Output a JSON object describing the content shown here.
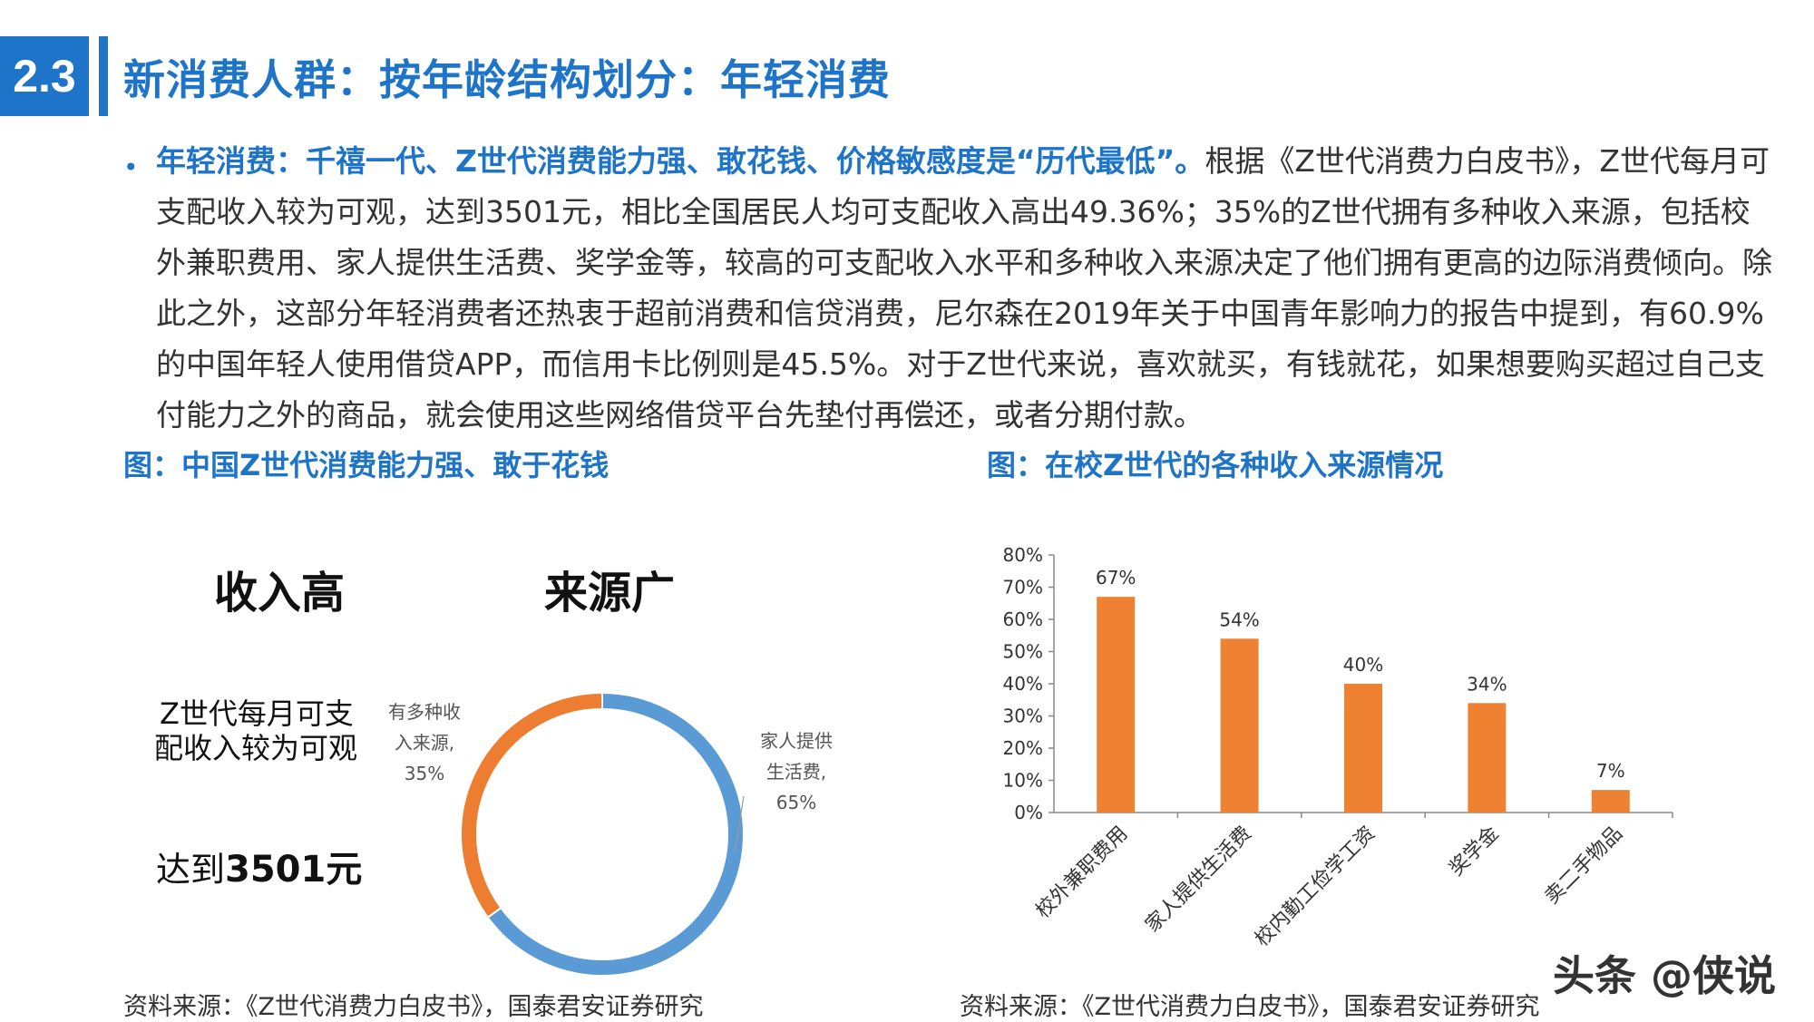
{
  "header": {
    "section_number": "2.3",
    "title": "新消费人群：按年龄结构划分：年轻消费"
  },
  "intro": {
    "lead": "年轻消费：千禧一代、Z世代消费能力强、敢花钱、价格敏感度是“历代最低”。",
    "body": "根据《Z世代消费力白皮书》，Z世代每月可支配收入较为可观，达到3501元，相比全国居民人均可支配收入高出49.36%；35%的Z世代拥有多种收入来源，包括校外兼职费用、家人提供生活费、奖学金等，较高的可支配收入水平和多种收入来源决定了他们拥有更高的边际消费倾向。除此之外，这部分年轻消费者还热衷于超前消费和信贷消费，尼尔森在2019年关于中国青年影响力的报告中提到，有60.9%的中国年轻人使用借贷APP，而信用卡比例则是45.5%。对于Z世代来说，喜欢就买，有钱就花，如果想要购买超过自己支付能力之外的商品，就会使用这些网络借贷平台先垫付再偿还，或者分期付款。"
  },
  "left_figure": {
    "caption": "图：中国Z世代消费能力强、敢于花钱",
    "heading_income": "收入高",
    "heading_sources": "来源广",
    "income_line1": "Z世代每月可支",
    "income_line2": "配收入较为可观",
    "income_reach_prefix": "达到",
    "income_reach_value": "3501元",
    "source": "资料来源：《Z世代消费力白皮书》，国泰君安证券研究"
  },
  "right_figure": {
    "caption": "图：在校Z世代的各种收入来源情况",
    "source": "资料来源：《Z世代消费力白皮书》，国泰君安证券研究"
  },
  "colors": {
    "accent_blue": "#1e74c9",
    "bar_orange": "#ee8232",
    "donut_blue": "#5b9bd5",
    "donut_orange": "#ed7d31"
  },
  "watermark": "头条 @侠说",
  "chart_data": [
    {
      "type": "pie",
      "variant": "donut",
      "title": "",
      "slices": [
        {
          "label_line1": "家人提供",
          "label_line2": "生活费,",
          "value": 65,
          "value_label": "65%",
          "color": "#5b9bd5"
        },
        {
          "label_line1": "有多种收",
          "label_line2": "入来源,",
          "value": 35,
          "value_label": "35%",
          "color": "#ed7d31"
        }
      ]
    },
    {
      "type": "bar",
      "title": "",
      "xlabel": "",
      "ylabel": "",
      "categories": [
        "校外兼职费用",
        "家人提供生活费",
        "校内勤工俭学工资",
        "奖学金",
        "卖二手物品"
      ],
      "values": [
        67,
        54,
        40,
        34,
        7
      ],
      "value_labels": [
        "67%",
        "54%",
        "40%",
        "34%",
        "7%"
      ],
      "ylim": [
        0,
        80
      ],
      "yticks": [
        "0%",
        "10%",
        "20%",
        "30%",
        "40%",
        "50%",
        "60%",
        "70%",
        "80%"
      ],
      "grid": false,
      "color": "#ee8232"
    }
  ]
}
